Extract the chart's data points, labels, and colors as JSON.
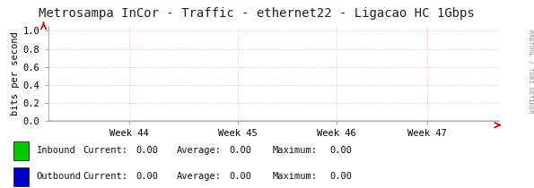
{
  "title": "Metrosampa InCor - Traffic - ethernet22 - Ligacao HC 1Gbps",
  "ylabel": "bits per second",
  "background_color": "#ffffff",
  "plot_bg_color": "#ffffff",
  "grid_color": "#ffaaaa",
  "xlim": [
    0,
    1
  ],
  "ylim": [
    0,
    1.05
  ],
  "yticks": [
    0.0,
    0.2,
    0.4,
    0.6,
    0.8,
    1.0
  ],
  "ytick_labels": [
    "0.0",
    "0.2",
    "0.4",
    "0.6",
    "0.8",
    "1.0"
  ],
  "xtick_labels": [
    "Week 44",
    "Week 45",
    "Week 46",
    "Week 47"
  ],
  "xtick_positions": [
    0.18,
    0.42,
    0.64,
    0.84
  ],
  "arrow_color": "#cc0000",
  "title_fontsize": 10,
  "axis_fontsize": 7.5,
  "tick_fontsize": 7.5,
  "legend": [
    {
      "label": "Inbound",
      "color": "#00cc00"
    },
    {
      "label": "Outbound",
      "color": "#0000cc"
    }
  ],
  "legend_stats": [
    {
      "current": "0.00",
      "average": "0.00",
      "maximum": "0.00"
    },
    {
      "current": "0.00",
      "average": "0.00",
      "maximum": "0.00"
    }
  ],
  "right_label": "RRDTOOL / TOBI OETIKER",
  "vline_color": "#ffaaaa",
  "vline_positions": [
    0.18,
    0.42,
    0.64,
    0.84
  ],
  "hline_positions": [
    0.2,
    0.4,
    0.6,
    0.8,
    1.0
  ]
}
